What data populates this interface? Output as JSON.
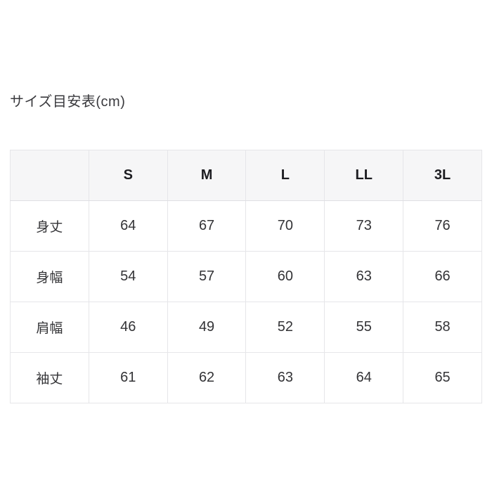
{
  "page": {
    "title": "サイズ目安表(cm)"
  },
  "colors": {
    "background": "#ffffff",
    "header_background": "#f6f6f7",
    "border": "#e6e6e9",
    "header_text": "#1d1d21",
    "body_text": "#333336",
    "title_text": "#3a3a3e"
  },
  "chart_data": {
    "type": "table",
    "title": "サイズ目安表(cm)",
    "unit": "cm",
    "columns": [
      "",
      "S",
      "M",
      "L",
      "LL",
      "3L"
    ],
    "rows": [
      {
        "label": "身丈",
        "values": [
          "64",
          "67",
          "70",
          "73",
          "76"
        ]
      },
      {
        "label": "身幅",
        "values": [
          "54",
          "57",
          "60",
          "63",
          "66"
        ]
      },
      {
        "label": "肩幅",
        "values": [
          "46",
          "49",
          "52",
          "55",
          "58"
        ]
      },
      {
        "label": "袖丈",
        "values": [
          "61",
          "62",
          "63",
          "64",
          "65"
        ]
      }
    ]
  }
}
